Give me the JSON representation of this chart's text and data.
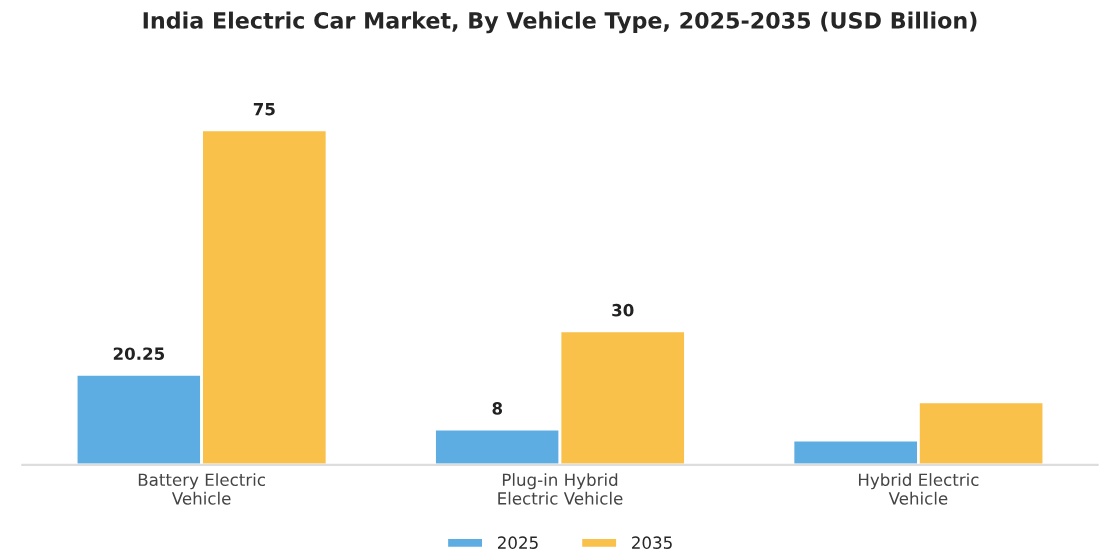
{
  "chart_data": {
    "type": "bar",
    "title": "India Electric Car Market, By Vehicle Type, 2025-2035 (USD Billion)",
    "categories": [
      "Battery Electric\nVehicle",
      "Plug-in Hybrid\nElectric Vehicle",
      "Hybrid Electric\nVehicle"
    ],
    "series": [
      {
        "name": "2025",
        "color": "#5dade2",
        "values": [
          20.25,
          8,
          5.5
        ],
        "value_labels": [
          "20.25",
          "8",
          null
        ]
      },
      {
        "name": "2035",
        "color": "#f9c04a",
        "values": [
          75,
          30,
          14.1
        ],
        "value_labels": [
          "75",
          "30",
          null
        ]
      }
    ],
    "legend": "bottom",
    "grid": false,
    "tick_labels": "x"
  }
}
